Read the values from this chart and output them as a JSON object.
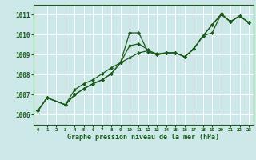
{
  "title": "Graphe pression niveau de la mer (hPa)",
  "bg_color": "#cce8e8",
  "grid_color": "#aacccc",
  "line_color": "#1a5c1a",
  "marker_color": "#1a5c1a",
  "xlim": [
    -0.5,
    23.5
  ],
  "ylim": [
    1005.5,
    1011.5
  ],
  "yticks": [
    1006,
    1007,
    1008,
    1009,
    1010,
    1011
  ],
  "xticks": [
    0,
    1,
    2,
    3,
    4,
    5,
    6,
    7,
    8,
    9,
    10,
    11,
    12,
    13,
    14,
    15,
    16,
    17,
    18,
    19,
    20,
    21,
    22,
    23
  ],
  "series1_x": [
    0,
    1,
    3,
    4,
    5,
    6,
    7,
    8,
    9,
    10,
    11,
    12,
    13,
    14,
    15,
    16,
    17,
    18,
    19,
    20,
    21,
    22,
    23
  ],
  "series1_y": [
    1006.2,
    1006.85,
    1006.5,
    1007.25,
    1007.55,
    1007.75,
    1008.05,
    1008.35,
    1008.6,
    1010.1,
    1010.1,
    1009.15,
    1009.0,
    1009.1,
    1009.1,
    1008.9,
    1009.3,
    1009.95,
    1010.5,
    1011.0,
    1010.65,
    1010.95,
    1010.6
  ],
  "series2_x": [
    0,
    1,
    3,
    4,
    5,
    6,
    7,
    8,
    9,
    10,
    11,
    12,
    13,
    14,
    15,
    16,
    17,
    18,
    19,
    20,
    21,
    22,
    23
  ],
  "series2_y": [
    1006.2,
    1006.85,
    1006.5,
    1007.0,
    1007.3,
    1007.55,
    1007.75,
    1008.05,
    1008.6,
    1009.45,
    1009.55,
    1009.25,
    1009.0,
    1009.1,
    1009.1,
    1008.9,
    1009.3,
    1009.95,
    1010.5,
    1011.05,
    1010.65,
    1010.95,
    1010.6
  ],
  "series3_x": [
    0,
    1,
    3,
    4,
    5,
    6,
    7,
    8,
    9,
    10,
    11,
    12,
    13,
    14,
    15,
    16,
    17,
    18,
    19,
    20,
    21,
    22,
    23
  ],
  "series3_y": [
    1006.2,
    1006.85,
    1006.5,
    1007.0,
    1007.3,
    1007.55,
    1007.75,
    1008.05,
    1008.6,
    1008.85,
    1009.1,
    1009.2,
    1009.05,
    1009.1,
    1009.1,
    1008.9,
    1009.3,
    1009.95,
    1010.1,
    1011.05,
    1010.65,
    1010.95,
    1010.6
  ]
}
